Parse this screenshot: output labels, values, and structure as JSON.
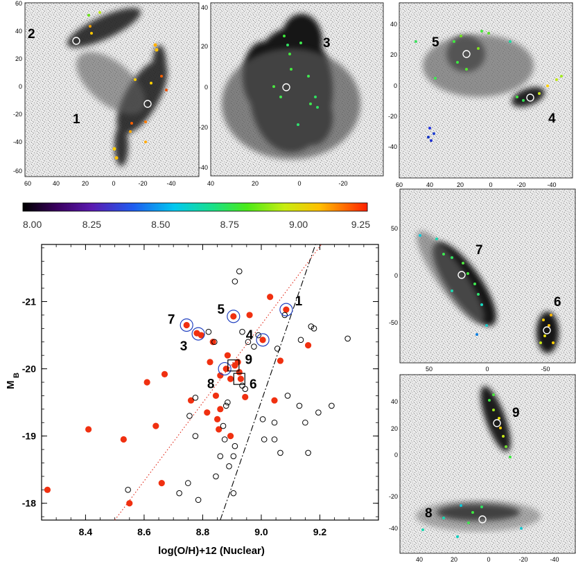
{
  "chart_data": [
    {
      "type": "scatter",
      "title": "",
      "xlabel": "log(O/H)+12 (Nuclear)",
      "ylabel": "M",
      "ylabel_sub": "B",
      "xlim": [
        8.25,
        9.4
      ],
      "ylim": [
        -17.75,
        -21.85
      ],
      "x_ticks": [
        8.4,
        8.6,
        8.8,
        9.0,
        9.2
      ],
      "x_tick_labels": [
        "8.4",
        "8.6",
        "8.8",
        "9.0",
        "9.2"
      ],
      "y_ticks": [
        -18,
        -19,
        -20,
        -21
      ],
      "y_tick_labels": [
        "-18",
        "-19",
        "-20",
        "-21"
      ],
      "series": [
        {
          "name": "filled red",
          "marker": "filled-circle",
          "color": "#f03010",
          "points": [
            [
              8.27,
              -18.2
            ],
            [
              8.41,
              -19.1
            ],
            [
              8.53,
              -18.95
            ],
            [
              8.55,
              -18.0
            ],
            [
              8.61,
              -19.8
            ],
            [
              8.64,
              -19.15
            ],
            [
              8.66,
              -18.3
            ],
            [
              8.67,
              -19.92
            ],
            [
              8.745,
              -20.65
            ],
            [
              8.78,
              -20.53
            ],
            [
              8.795,
              -20.5
            ],
            [
              8.76,
              -19.53
            ],
            [
              8.815,
              -19.35
            ],
            [
              8.825,
              -20.1
            ],
            [
              8.835,
              -20.4
            ],
            [
              8.85,
              -19.25
            ],
            [
              8.855,
              -19.1
            ],
            [
              8.86,
              -19.4
            ],
            [
              8.845,
              -19.6
            ],
            [
              8.86,
              -19.9
            ],
            [
              8.88,
              -20.0
            ],
            [
              8.885,
              -20.2
            ],
            [
              8.895,
              -19.85
            ],
            [
              8.895,
              -19.0
            ],
            [
              8.91,
              -20.05
            ],
            [
              8.905,
              -20.78
            ],
            [
              8.92,
              -20.1
            ],
            [
              8.925,
              -19.95
            ],
            [
              8.93,
              -19.85
            ],
            [
              8.945,
              -19.58
            ],
            [
              8.96,
              -20.8
            ],
            [
              9.005,
              -20.43
            ],
            [
              9.03,
              -21.07
            ],
            [
              9.045,
              -19.53
            ],
            [
              9.065,
              -20.12
            ],
            [
              9.085,
              -20.88
            ],
            [
              9.16,
              -20.35
            ]
          ]
        },
        {
          "name": "open black",
          "marker": "open-circle",
          "color": "#000000",
          "points": [
            [
              8.545,
              -18.2
            ],
            [
              8.72,
              -18.15
            ],
            [
              8.75,
              -18.3
            ],
            [
              8.755,
              -19.3
            ],
            [
              8.775,
              -19.57
            ],
            [
              8.775,
              -19.0
            ],
            [
              8.785,
              -18.05
            ],
            [
              8.82,
              -20.55
            ],
            [
              8.84,
              -20.4
            ],
            [
              8.845,
              -18.4
            ],
            [
              8.86,
              -18.7
            ],
            [
              8.87,
              -19.15
            ],
            [
              8.875,
              -18.95
            ],
            [
              8.88,
              -19.45
            ],
            [
              8.885,
              -19.5
            ],
            [
              8.89,
              -18.55
            ],
            [
              8.905,
              -18.7
            ],
            [
              8.905,
              -18.15
            ],
            [
              8.91,
              -21.3
            ],
            [
              8.91,
              -18.85
            ],
            [
              8.925,
              -21.45
            ],
            [
              8.935,
              -20.55
            ],
            [
              8.935,
              -19.75
            ],
            [
              8.945,
              -19.7
            ],
            [
              8.955,
              -20.4
            ],
            [
              8.975,
              -20.33
            ],
            [
              8.99,
              -20.5
            ],
            [
              9.005,
              -19.25
            ],
            [
              9.01,
              -18.95
            ],
            [
              9.045,
              -19.2
            ],
            [
              9.045,
              -18.95
            ],
            [
              9.055,
              -20.3
            ],
            [
              9.065,
              -18.75
            ],
            [
              9.08,
              -20.8
            ],
            [
              9.09,
              -19.6
            ],
            [
              9.13,
              -19.45
            ],
            [
              9.135,
              -20.43
            ],
            [
              9.15,
              -19.2
            ],
            [
              9.16,
              -18.75
            ],
            [
              9.17,
              -20.63
            ],
            [
              9.18,
              -20.6
            ],
            [
              9.195,
              -19.35
            ],
            [
              9.24,
              -19.45
            ],
            [
              9.295,
              -20.45
            ]
          ]
        }
      ],
      "highlighted": [
        {
          "label": "7",
          "x": 8.745,
          "y": -20.65
        },
        {
          "label": "3",
          "x": 8.785,
          "y": -20.52
        },
        {
          "label": "5",
          "x": 8.905,
          "y": -20.78
        },
        {
          "label": "4",
          "x": 9.005,
          "y": -20.43
        },
        {
          "label": "1",
          "x": 9.085,
          "y": -20.88
        },
        {
          "label": "8",
          "x": 8.875,
          "y": -20.0
        }
      ],
      "boxed": [
        {
          "label": "9",
          "x": 8.905,
          "y": -20.05
        },
        {
          "label": "6",
          "x": 8.925,
          "y": -19.85
        }
      ],
      "fit_lines": [
        {
          "name": "red dotted",
          "style": "dotted",
          "color": "#e02010",
          "x": [
            8.5,
            9.205
          ],
          "y": [
            -17.75,
            -21.85
          ]
        },
        {
          "name": "black dash-dot",
          "style": "dashdot",
          "color": "#000000",
          "x": [
            8.86,
            9.185
          ],
          "y": [
            -17.75,
            -21.85
          ]
        }
      ],
      "annotation_labels": [
        "7",
        "3",
        "5",
        "4",
        "1",
        "9",
        "8",
        "6"
      ]
    },
    {
      "type": "colorbar",
      "min": 8.0,
      "max": 9.25,
      "ticks": [
        "8.00",
        "8.25",
        "8.50",
        "8.75",
        "9.00",
        "9.25"
      ]
    }
  ],
  "panels": [
    {
      "id": "A",
      "labels": [
        "2",
        "1"
      ],
      "x_ticks": [
        "60",
        "40",
        "20",
        "0",
        "-20",
        "-40"
      ],
      "y_ticks": [
        "60",
        "40",
        "20",
        "0",
        "-20",
        "-40",
        "-60"
      ]
    },
    {
      "id": "B",
      "labels": [
        "3"
      ],
      "x_ticks": [
        "40",
        "20",
        "0",
        "-20"
      ],
      "y_ticks": [
        "40",
        "20",
        "0",
        "-20",
        "-40"
      ]
    },
    {
      "id": "C",
      "labels": [
        "5",
        "4"
      ],
      "x_ticks": [
        "60",
        "40",
        "20",
        "0",
        "-20",
        "-40"
      ],
      "y_ticks": [
        "40",
        "20",
        "0",
        "-20",
        "-40"
      ]
    },
    {
      "id": "D",
      "labels": [
        "7",
        "6"
      ],
      "x_ticks": [
        "50",
        "0",
        "-50"
      ],
      "y_ticks": [
        "50",
        "0",
        "-50"
      ]
    },
    {
      "id": "E",
      "labels": [
        "9",
        "8"
      ],
      "x_ticks": [
        "40",
        "20",
        "0",
        "-20",
        "-40"
      ],
      "y_ticks": [
        "40",
        "20",
        "0",
        "-20",
        "-40"
      ]
    }
  ]
}
